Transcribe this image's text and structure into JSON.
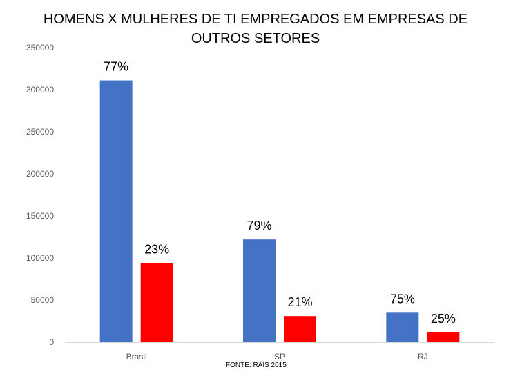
{
  "chart_data": {
    "type": "bar",
    "title": "HOMENS X MULHERES DE TI EMPREGADOS EM EMPRESAS DE OUTROS SETORES",
    "source": "FONTE: RAIS 2015",
    "categories": [
      "Brasil",
      "SP",
      "RJ"
    ],
    "series": [
      {
        "color": "#4472C4",
        "values": [
          311000,
          122000,
          35000
        ],
        "labels": [
          "77%",
          "79%",
          "75%"
        ]
      },
      {
        "color": "#FF0000",
        "values": [
          94000,
          31000,
          11500
        ],
        "labels": [
          "23%",
          "21%",
          "25%"
        ]
      }
    ],
    "ylim": [
      0,
      350000
    ],
    "yticks": [
      "0",
      "50000",
      "100000",
      "150000",
      "200000",
      "250000",
      "300000",
      "350000"
    ],
    "grid": false,
    "legend": "none"
  }
}
